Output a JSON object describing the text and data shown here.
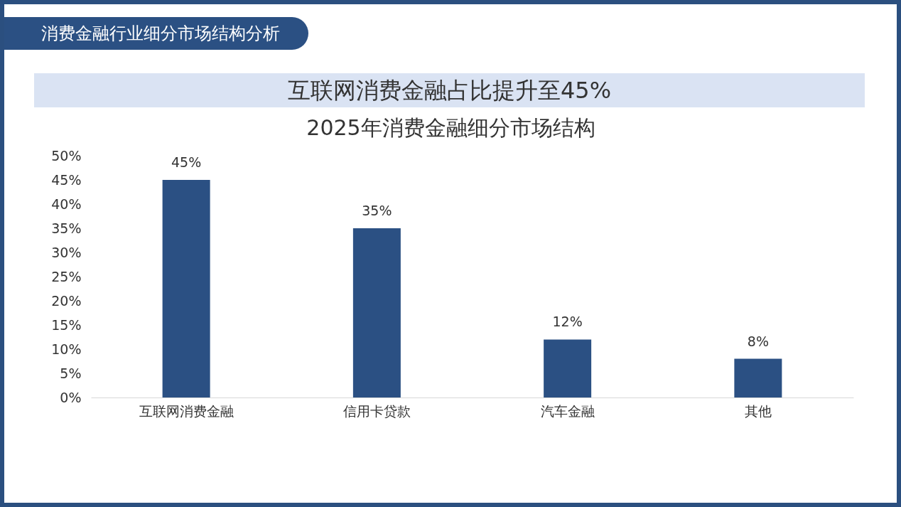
{
  "chart_data": {
    "type": "bar",
    "title": "2025年消费金融细分市场结构",
    "subtitle": "互联网消费金融占比提升至45%",
    "annotations": [
      "消费金融行业细分市场结构分析"
    ],
    "categories": [
      "互联网消费金融",
      "信用卡贷款",
      "汽车金融",
      "其他"
    ],
    "values": [
      45,
      35,
      12,
      8
    ],
    "value_labels": [
      "45%",
      "35%",
      "12%",
      "8%"
    ],
    "color": "#2b5083",
    "ylim": [
      0,
      50
    ],
    "yticks": [
      {
        "value": 0,
        "label": "0%"
      },
      {
        "value": 5,
        "label": "5%"
      },
      {
        "value": 10,
        "label": "10%"
      },
      {
        "value": 15,
        "label": "15%"
      },
      {
        "value": 20,
        "label": "20%"
      },
      {
        "value": 25,
        "label": "25%"
      },
      {
        "value": 30,
        "label": "30%"
      },
      {
        "value": 35,
        "label": "35%"
      },
      {
        "value": 40,
        "label": "40%"
      },
      {
        "value": 45,
        "label": "45%"
      },
      {
        "value": 50,
        "label": "50%"
      }
    ],
    "grid": false
  }
}
